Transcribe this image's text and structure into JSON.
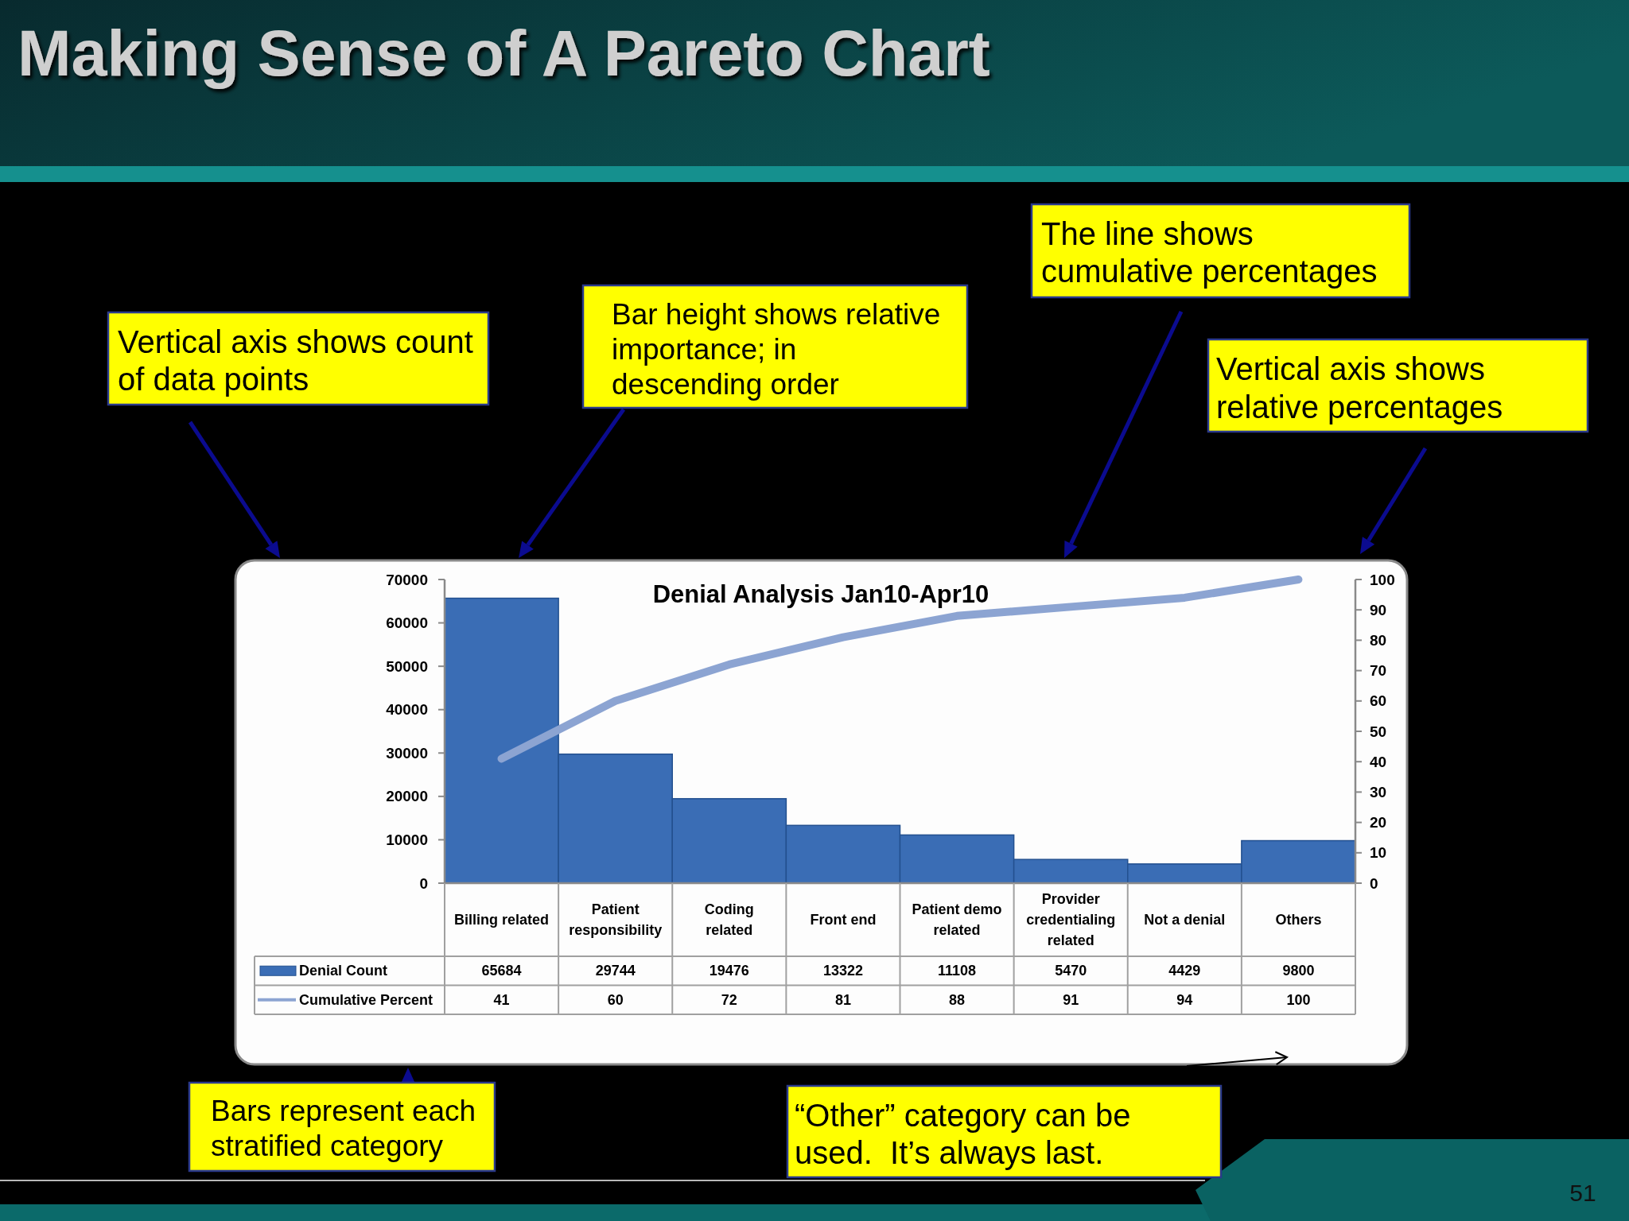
{
  "chart_data": {
    "type": "bar",
    "title": "Making Sense of A Pareto Chart",
    "subtitle": "Denial Analysis Jan10-Apr10",
    "categories": [
      "Billing related",
      "Patient responsibility",
      "Coding related",
      "Front end",
      "Patient demo related",
      "Provider credentialing related",
      "Not a denial",
      "Others"
    ],
    "series": [
      {
        "name": "Denial Count",
        "color": "#3a6db5",
        "values": [
          65684,
          29744,
          19476,
          13322,
          11108,
          5470,
          4429,
          9800
        ]
      },
      {
        "name": "Cumulative Percent",
        "type": "line",
        "axis": "y2",
        "color": "#8ca4d2",
        "values": [
          41,
          60,
          72,
          81,
          88,
          91,
          94,
          100
        ]
      }
    ],
    "ylim": [
      0,
      70000
    ],
    "yticks": [
      0,
      10000,
      20000,
      30000,
      40000,
      50000,
      60000,
      70000
    ],
    "y2lim": [
      0,
      100
    ],
    "y2ticks": [
      0,
      10,
      20,
      30,
      40,
      50,
      60,
      70,
      80,
      90,
      100
    ],
    "data_labels": true,
    "legend": "bottom",
    "annotations": [
      "Vertical axis shows count of data points",
      "Bar height shows relative importance; in descending order",
      "The line shows cumulative percentages",
      "Vertical axis shows relative percentages",
      "Bars represent each stratified category",
      "“Other” category can be used.  It’s always last.",
      "51"
    ]
  }
}
